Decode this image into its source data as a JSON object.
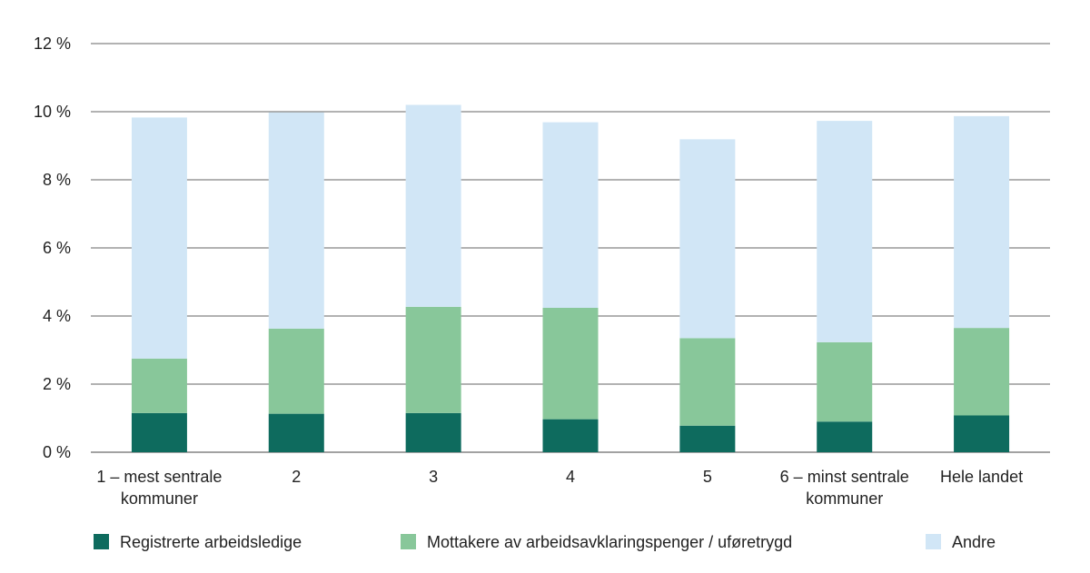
{
  "chart_data": {
    "type": "bar",
    "stacked": true,
    "categories": [
      [
        "1 – mest sentrale",
        "kommuner"
      ],
      [
        "2"
      ],
      [
        "3"
      ],
      [
        "4"
      ],
      [
        "5"
      ],
      [
        "6 – minst sentrale",
        "kommuner"
      ],
      [
        "Hele landet"
      ]
    ],
    "series": [
      {
        "name": "Registrerte arbeidsledige",
        "color": "#0e6b5e",
        "values": [
          1.15,
          1.13,
          1.15,
          0.97,
          0.78,
          0.9,
          1.08
        ]
      },
      {
        "name": "Mottakere av arbeidsavklaringspenger / uføretrygd",
        "color": "#88c79a",
        "values": [
          1.6,
          2.5,
          3.12,
          3.27,
          2.57,
          2.33,
          2.57
        ]
      },
      {
        "name": "Andre",
        "color": "#d1e6f6",
        "values": [
          7.08,
          6.35,
          5.93,
          5.45,
          5.84,
          6.5,
          6.22
        ]
      }
    ],
    "ylim": [
      0,
      12
    ],
    "yticks": [
      0,
      2,
      4,
      6,
      8,
      10,
      12
    ],
    "ytick_labels": [
      "0 %",
      "2 %",
      "4 %",
      "6 %",
      "8 %",
      "10 %",
      "12 %"
    ],
    "title": "",
    "xlabel": "",
    "ylabel": "",
    "grid": true,
    "legend_position": "bottom"
  }
}
